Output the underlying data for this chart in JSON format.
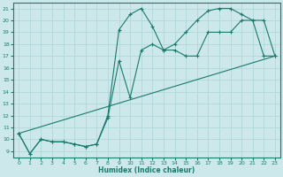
{
  "xlabel": "Humidex (Indice chaleur)",
  "xlim": [
    -0.5,
    23.5
  ],
  "ylim": [
    8.5,
    21.5
  ],
  "yticks": [
    9,
    10,
    11,
    12,
    13,
    14,
    15,
    16,
    17,
    18,
    19,
    20,
    21
  ],
  "xticks": [
    0,
    1,
    2,
    3,
    4,
    5,
    6,
    7,
    8,
    9,
    10,
    11,
    12,
    13,
    14,
    15,
    16,
    17,
    18,
    19,
    20,
    21,
    22,
    23
  ],
  "line_color": "#1a7a6e",
  "bg_color": "#cce8ea",
  "grid_color": "#b0d8dc",
  "line1_x": [
    0,
    1,
    2,
    3,
    4,
    5,
    6,
    7,
    8,
    9,
    10,
    11,
    12,
    13,
    14,
    15,
    16,
    17,
    18,
    19,
    20,
    21,
    22,
    23
  ],
  "line1_y": [
    10.5,
    8.8,
    10.0,
    9.8,
    9.8,
    9.6,
    9.4,
    9.6,
    12.0,
    19.2,
    20.5,
    21.0,
    19.5,
    17.5,
    17.5,
    17.0,
    17.0,
    19.0,
    19.0,
    19.0,
    20.0,
    20.0,
    20.0,
    17.0
  ],
  "line2_x": [
    0,
    1,
    2,
    3,
    4,
    5,
    6,
    7,
    8,
    9,
    10,
    11,
    12,
    13,
    14,
    15,
    16,
    17,
    18,
    19,
    20,
    21,
    22,
    23
  ],
  "line2_y": [
    10.5,
    8.8,
    10.0,
    9.8,
    9.8,
    9.6,
    9.4,
    9.6,
    11.8,
    16.6,
    13.5,
    17.5,
    18.0,
    17.5,
    18.0,
    19.0,
    20.0,
    20.8,
    21.0,
    21.0,
    20.5,
    20.0,
    17.0,
    17.0
  ],
  "line3_x": [
    0,
    23
  ],
  "line3_y": [
    10.5,
    17.0
  ]
}
